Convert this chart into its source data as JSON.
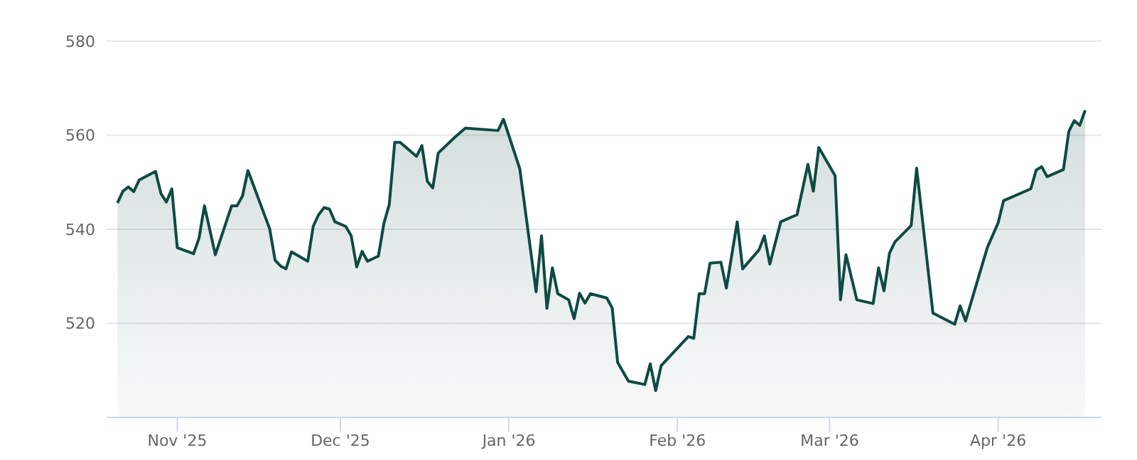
{
  "chart_data": {
    "type": "area",
    "color": "#0e4a42",
    "grid": "y",
    "xlim": [
      "2025-10-19",
      "2026-04-20"
    ],
    "xticks": [
      {
        "value": "2025-11-01",
        "label": "Nov '25"
      },
      {
        "value": "2025-12-01",
        "label": "Dec '25"
      },
      {
        "value": "2026-01-01",
        "label": "Jan '26"
      },
      {
        "value": "2026-02-01",
        "label": "Feb '26"
      },
      {
        "value": "2026-03-01",
        "label": "Mar '26"
      },
      {
        "value": "2026-04-01",
        "label": "Apr '26"
      }
    ],
    "ylim": [
      500,
      580
    ],
    "yticks": [
      {
        "value": 500,
        "label": null
      },
      520,
      540,
      560,
      580
    ],
    "x": [
      "2025-10-21",
      "2025-10-22",
      "2025-10-23",
      "2025-10-24",
      "2025-10-25",
      "2025-10-28",
      "2025-10-29",
      "2025-10-30",
      "2025-10-31",
      "2025-11-01",
      "2025-11-04",
      "2025-11-05",
      "2025-11-06",
      "2025-11-08",
      "2025-11-11",
      "2025-11-12",
      "2025-11-13",
      "2025-11-14",
      "2025-11-18",
      "2025-11-19",
      "2025-11-20",
      "2025-11-21",
      "2025-11-22",
      "2025-11-25",
      "2025-11-26",
      "2025-11-27",
      "2025-11-28",
      "2025-11-29",
      "2025-11-30",
      "2025-12-02",
      "2025-12-03",
      "2025-12-04",
      "2025-12-05",
      "2025-12-06",
      "2025-12-08",
      "2025-12-09",
      "2025-12-10",
      "2025-12-11",
      "2025-12-12",
      "2025-12-15",
      "2025-12-16",
      "2025-12-17",
      "2025-12-18",
      "2025-12-19",
      "2025-12-22",
      "2025-12-24",
      "2025-12-30",
      "2025-12-31",
      "2026-01-03",
      "2026-01-06",
      "2026-01-07",
      "2026-01-08",
      "2026-01-09",
      "2026-01-10",
      "2026-01-12",
      "2026-01-13",
      "2026-01-14",
      "2026-01-15",
      "2026-01-16",
      "2026-01-19",
      "2026-01-20",
      "2026-01-21",
      "2026-01-23",
      "2026-01-26",
      "2026-01-27",
      "2026-01-28",
      "2026-01-29",
      "2026-02-03",
      "2026-02-04",
      "2026-02-05",
      "2026-02-06",
      "2026-02-07",
      "2026-02-09",
      "2026-02-10",
      "2026-02-12",
      "2026-02-13",
      "2026-02-16",
      "2026-02-17",
      "2026-02-18",
      "2026-02-20",
      "2026-02-23",
      "2026-02-25",
      "2026-02-26",
      "2026-02-27",
      "2026-03-02",
      "2026-03-03",
      "2026-03-04",
      "2026-03-06",
      "2026-03-09",
      "2026-03-10",
      "2026-03-11",
      "2026-03-12",
      "2026-03-13",
      "2026-03-16",
      "2026-03-17",
      "2026-03-20",
      "2026-03-24",
      "2026-03-25",
      "2026-03-26",
      "2026-03-30",
      "2026-04-01",
      "2026-04-02",
      "2026-04-07",
      "2026-04-08",
      "2026-04-09",
      "2026-04-10",
      "2026-04-13",
      "2026-04-14",
      "2026-04-15",
      "2026-04-16",
      "2026-04-17"
    ],
    "values": [
      545.6,
      548.1,
      549.0,
      548.0,
      550.5,
      552.3,
      547.6,
      545.8,
      548.6,
      536.1,
      534.8,
      538.1,
      545.0,
      534.6,
      545.0,
      545.0,
      547.1,
      552.5,
      540.1,
      533.4,
      532.2,
      531.6,
      535.2,
      533.2,
      540.6,
      543.1,
      544.6,
      544.3,
      541.6,
      540.6,
      538.6,
      532.0,
      535.3,
      533.2,
      534.3,
      541.2,
      545.3,
      558.5,
      558.5,
      555.5,
      557.8,
      550.2,
      548.8,
      556.2,
      559.5,
      561.5,
      561.0,
      563.4,
      552.9,
      526.7,
      538.6,
      523.2,
      531.8,
      526.3,
      525.0,
      521.0,
      526.4,
      524.3,
      526.3,
      525.4,
      523.3,
      511.7,
      507.7,
      507.0,
      511.4,
      505.7,
      511.0,
      517.2,
      516.8,
      526.3,
      526.3,
      532.8,
      533.0,
      527.5,
      541.6,
      531.6,
      535.6,
      538.6,
      532.6,
      541.6,
      543.1,
      553.8,
      548.1,
      557.4,
      551.4,
      525.0,
      534.6,
      525.0,
      524.2,
      531.8,
      526.9,
      534.9,
      537.3,
      540.8,
      553.0,
      522.2,
      519.8,
      523.7,
      520.5,
      536.1,
      541.4,
      546.1,
      548.6,
      552.6,
      553.3,
      551.2,
      552.7,
      560.8,
      563.1,
      562.1,
      565.3
    ]
  }
}
